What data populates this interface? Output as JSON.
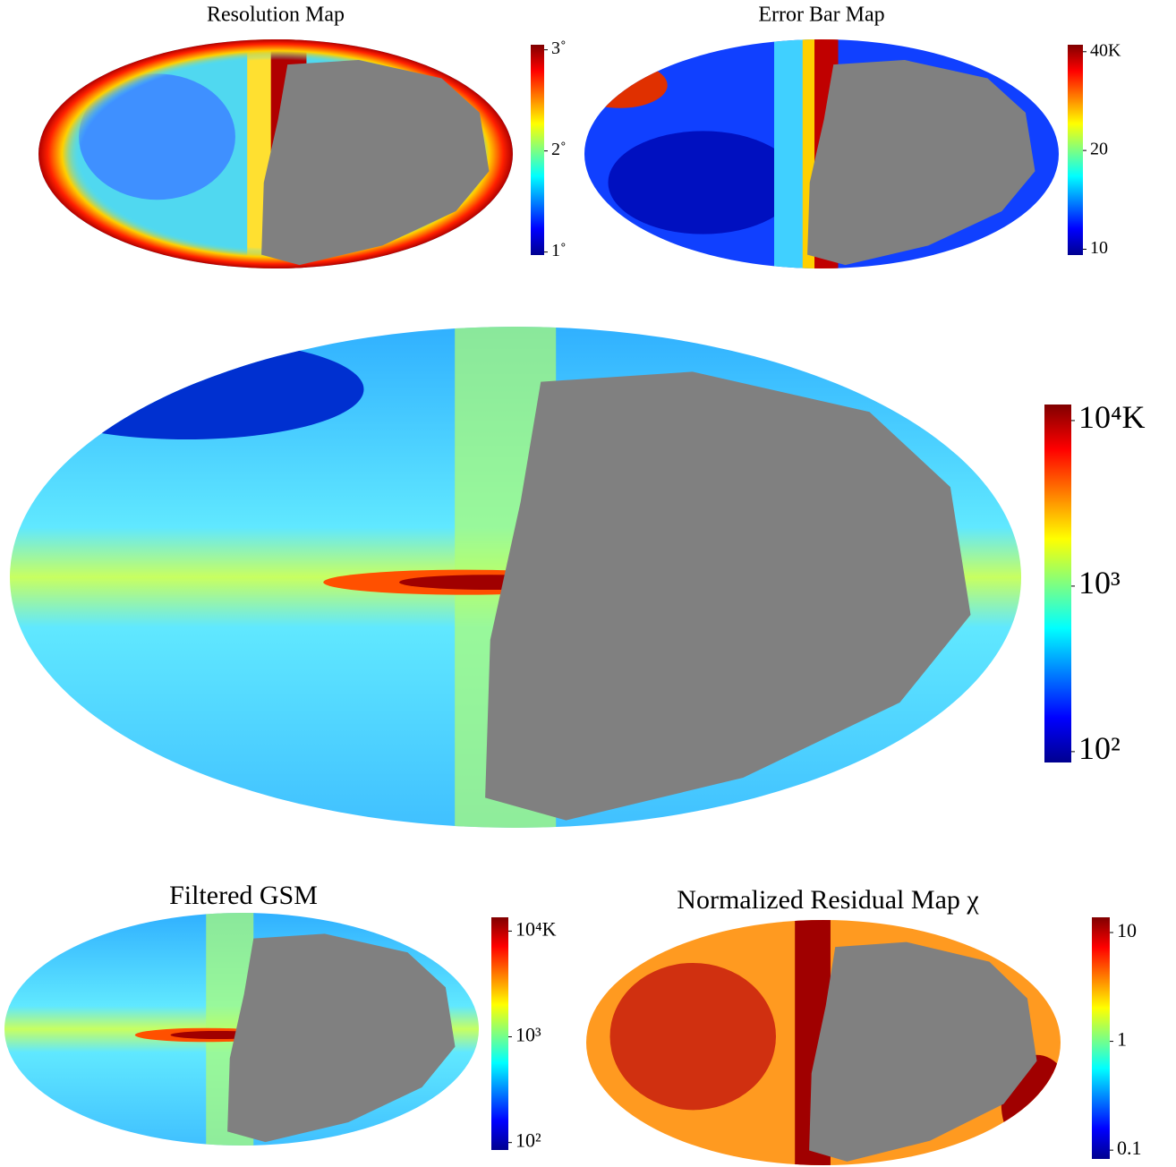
{
  "chart_data": [
    {
      "type": "map",
      "title": "Resolution Map",
      "colormap": "jet",
      "log": false,
      "clim": [
        0.97,
        3.05
      ],
      "cticks": [
        {
          "value": 1,
          "label": "1˚"
        },
        {
          "value": 2,
          "label": "2˚"
        },
        {
          "value": 3,
          "label": "3˚"
        }
      ]
    },
    {
      "type": "map",
      "title": "Error Bar Map",
      "colormap": "jet",
      "log": true,
      "clim": [
        9.6,
        42
      ],
      "cticks": [
        10,
        20,
        {
          "value": 40,
          "label": "40K"
        }
      ]
    },
    {
      "type": "map",
      "colormap": "jet",
      "log": true,
      "clim": [
        86,
        12500
      ],
      "cticks": [
        {
          "value": 100,
          "label": "10²"
        },
        {
          "value": 1000,
          "label": "10³"
        },
        {
          "value": 10000,
          "label": "10⁴K"
        }
      ]
    },
    {
      "type": "map",
      "title": "Filtered GSM",
      "colormap": "jet",
      "log": true,
      "clim": [
        85,
        13500
      ],
      "cticks": [
        {
          "value": 100,
          "label": "10²"
        },
        {
          "value": 1000,
          "label": "10³"
        },
        {
          "value": 10000,
          "label": "10⁴K"
        }
      ]
    },
    {
      "type": "map",
      "title": "Normalized Residual Map χ",
      "colormap": "jet",
      "log": true,
      "clim": [
        0.083,
        13.8
      ],
      "cticks": [
        0.1,
        1,
        10
      ]
    }
  ]
}
